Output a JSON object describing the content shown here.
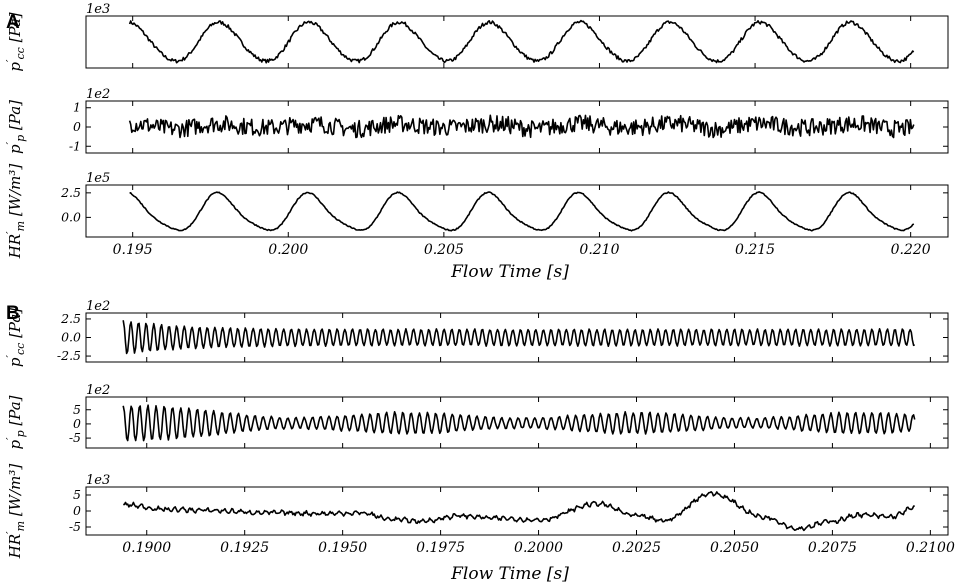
{
  "figure": {
    "panels": [
      {
        "id": "A",
        "label": "A",
        "xlabel": "Flow Time [s]"
      },
      {
        "id": "B",
        "label": "B",
        "xlabel": "Flow Time [s]"
      }
    ]
  },
  "chart_data": [
    {
      "type": "line",
      "panel": "A",
      "ylabel": "p′cc [Pa]",
      "exponent": "1e3",
      "xlim": [
        0.1935,
        0.2212
      ],
      "ylim": [
        -4.6,
        5.6
      ],
      "yticks": [],
      "ytick_labels": [],
      "xticks": [
        0.195,
        0.2,
        0.205,
        0.21,
        0.215,
        0.22
      ],
      "show_xtick_labels": false,
      "series": [
        {
          "x_start": 0.1949,
          "x_end": 0.2201,
          "period": 0.0029,
          "phase_x": 0.1978,
          "mean": 0.4,
          "amp": 3.8,
          "noise": 0.35,
          "harm2": 0.25,
          "drift": 0,
          "fmod": 0
        }
      ]
    },
    {
      "type": "line",
      "panel": "A",
      "ylabel": "p′p [Pa]",
      "exponent": "1e2",
      "xlim": [
        0.1935,
        0.2212
      ],
      "ylim": [
        -1.35,
        1.35
      ],
      "yticks": [
        1,
        0,
        -1
      ],
      "ytick_labels": [
        "1",
        "0",
        "-1"
      ],
      "xticks": [
        0.195,
        0.2,
        0.205,
        0.21,
        0.215,
        0.22
      ],
      "show_xtick_labels": false,
      "series": [
        {
          "x_start": 0.1949,
          "x_end": 0.2201,
          "period": 0.0029,
          "phase_x": 0.1978,
          "mean": 0.05,
          "amp": 0.12,
          "noise": 0.45,
          "harm2": 0,
          "drift": 0,
          "fmod": 0.3
        }
      ]
    },
    {
      "type": "line",
      "panel": "A",
      "ylabel": "HR′m [W/m³]",
      "exponent": "1e5",
      "xlim": [
        0.1935,
        0.2212
      ],
      "ylim": [
        -2.0,
        3.3
      ],
      "yticks": [
        2.5,
        0.0
      ],
      "ytick_labels": [
        "2.5",
        "0.0"
      ],
      "xticks": [
        0.195,
        0.2,
        0.205,
        0.21,
        0.215,
        0.22
      ],
      "show_xtick_labels": true,
      "xtick_labels": [
        "0.195",
        "0.200",
        "0.205",
        "0.210",
        "0.215",
        "0.220"
      ],
      "series": [
        {
          "x_start": 0.1949,
          "x_end": 0.2201,
          "period": 0.0029,
          "phase_x": 0.1978,
          "mean": 0.4,
          "amp": 1.85,
          "noise": 0.06,
          "harm2": 0.35,
          "drift": 0,
          "fmod": 0
        }
      ]
    },
    {
      "type": "line",
      "panel": "B",
      "ylabel": "p′cc [Pa]",
      "exponent": "1e2",
      "xlim": [
        0.18845,
        0.21045
      ],
      "ylim": [
        -3.3,
        3.3
      ],
      "yticks": [
        2.5,
        0.0,
        -2.5
      ],
      "ytick_labels": [
        "2.5",
        "0.0",
        "-2.5"
      ],
      "xticks": [
        0.19,
        0.1925,
        0.195,
        0.1975,
        0.2,
        0.2025,
        0.205,
        0.2075,
        0.21
      ],
      "show_xtick_labels": false,
      "series": [
        {
          "x_start": 0.1894,
          "x_end": 0.2096,
          "period": 0.000195,
          "phase_x": 0.1894,
          "mean": 0.0,
          "amp": 1.1,
          "noise": 0.08,
          "harm2": 0,
          "drift": 0,
          "decay_amp": 1.2,
          "fmod": 0
        }
      ]
    },
    {
      "type": "line",
      "panel": "B",
      "ylabel": "p′p [Pa]",
      "exponent": "1e2",
      "xlim": [
        0.18845,
        0.21045
      ],
      "ylim": [
        -8.5,
        9.5
      ],
      "yticks": [
        5,
        0,
        -5
      ],
      "ytick_labels": [
        "5",
        "0",
        "-5"
      ],
      "xticks": [
        0.19,
        0.1925,
        0.195,
        0.1975,
        0.2,
        0.2025,
        0.205,
        0.2075,
        0.21
      ],
      "show_xtick_labels": false,
      "series": [
        {
          "x_start": 0.1894,
          "x_end": 0.2096,
          "period": 0.00021,
          "phase_x": 0.1894,
          "mean": 0.3,
          "amp": 2.8,
          "noise": 0.25,
          "harm2": 0,
          "drift": 0,
          "decay_amp": 3.5,
          "fmod": 0.35
        }
      ]
    },
    {
      "type": "line",
      "panel": "B",
      "ylabel": "HR′m [W/m³]",
      "exponent": "1e3",
      "xlim": [
        0.18845,
        0.21045
      ],
      "ylim": [
        -7.5,
        7.5
      ],
      "yticks": [
        5,
        0,
        -5
      ],
      "ytick_labels": [
        "5",
        "0",
        "-5"
      ],
      "xticks": [
        0.19,
        0.1925,
        0.195,
        0.1975,
        0.2,
        0.2025,
        0.205,
        0.2075,
        0.21
      ],
      "show_xtick_labels": true,
      "xtick_labels": [
        "0.1900",
        "0.1925",
        "0.1950",
        "0.1975",
        "0.2000",
        "0.2025",
        "0.2050",
        "0.2075",
        "0.2100"
      ],
      "series": [
        {
          "x_start": 0.1894,
          "x_end": 0.2096,
          "keypoints": [
            [
              0.1894,
              2.0
            ],
            [
              0.1905,
              0.5
            ],
            [
              0.1915,
              0.2
            ],
            [
              0.193,
              -0.5
            ],
            [
              0.1945,
              -0.8
            ],
            [
              0.1955,
              -0.6
            ],
            [
              0.1962,
              -2.5
            ],
            [
              0.197,
              -3.2
            ],
            [
              0.198,
              -1.5
            ],
            [
              0.199,
              -2.3
            ],
            [
              0.2,
              -2.8
            ],
            [
              0.2015,
              2.3
            ],
            [
              0.2025,
              -1.5
            ],
            [
              0.2032,
              -3.0
            ],
            [
              0.2044,
              5.5
            ],
            [
              0.2058,
              -2.0
            ],
            [
              0.2066,
              -5.5
            ],
            [
              0.2075,
              -3.2
            ],
            [
              0.2082,
              -1.2
            ],
            [
              0.209,
              -1.8
            ],
            [
              0.2096,
              1.0
            ]
          ],
          "noise": 0.9,
          "ripple_period": 0.00021
        }
      ]
    }
  ]
}
